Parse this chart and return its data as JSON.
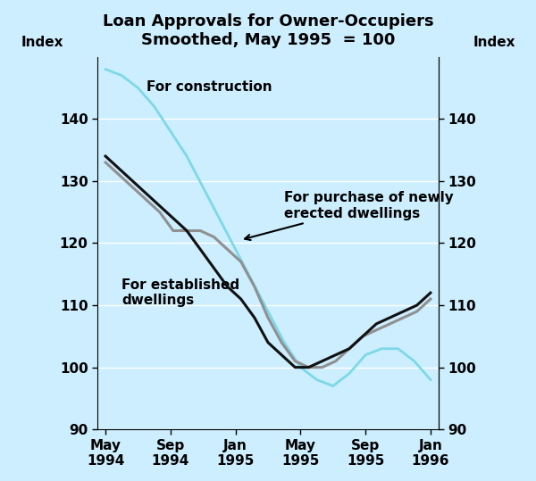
{
  "title": "Loan Approvals for Owner-Occupiers",
  "subtitle": "Smoothed, May 1995  = 100",
  "ylabel_left": "Index",
  "ylabel_right": "Index",
  "ylim": [
    90,
    150
  ],
  "yticks": [
    90,
    100,
    110,
    120,
    130,
    140
  ],
  "background_color": "#cceeff",
  "x_tick_labels": [
    "May\n1994",
    "Sep\n1994",
    "Jan\n1995",
    "May\n1995",
    "Sep\n1995",
    "Jan\n1996"
  ],
  "x_tick_positions": [
    0,
    4,
    8,
    12,
    16,
    20
  ],
  "construction": [
    148,
    147,
    145,
    142,
    138,
    134,
    129,
    124,
    119,
    114,
    109,
    104,
    100,
    98,
    97,
    99,
    102,
    103,
    103,
    101,
    98
  ],
  "established": [
    134,
    132,
    130,
    128,
    126,
    124,
    122,
    119,
    116,
    113,
    111,
    108,
    104,
    102,
    100,
    100,
    101,
    102,
    103,
    105,
    107,
    108,
    109,
    110,
    112
  ],
  "newly_erected": [
    133,
    131,
    129,
    127,
    125,
    122,
    122,
    122,
    121,
    119,
    117,
    113,
    108,
    104,
    101,
    100,
    100,
    101,
    103,
    105,
    106,
    107,
    108,
    109,
    111
  ],
  "construction_color": "#7dd8e8",
  "established_color": "#111111",
  "newly_erected_color": "#909090",
  "grid_color": "#e8f8fc"
}
